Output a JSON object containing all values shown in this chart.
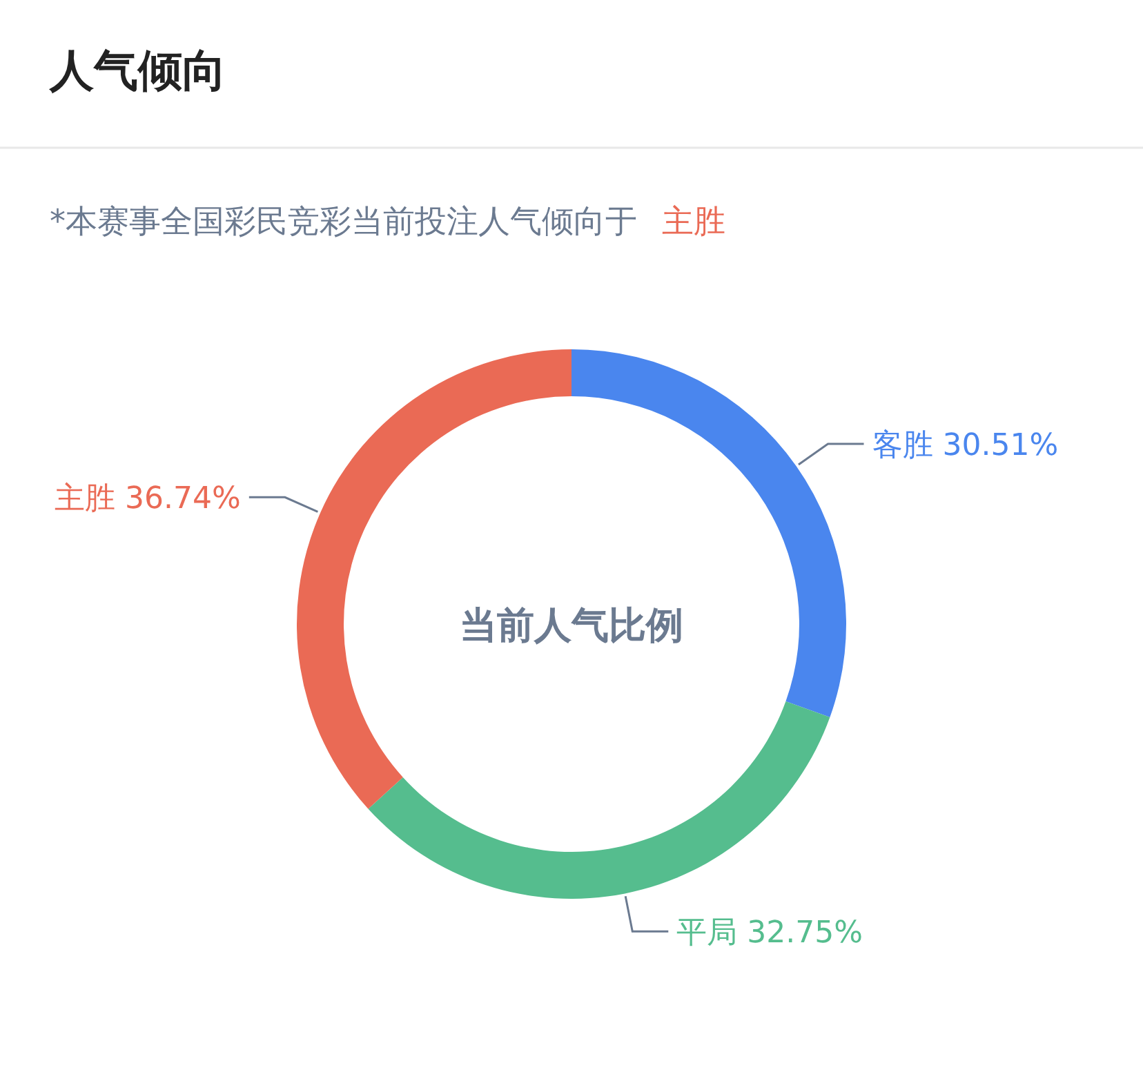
{
  "chart_data": {
    "type": "donut",
    "title": "人气倾向",
    "subtitle": "*本赛事全国彩民竞彩当前投注人气倾向于",
    "annotations": [
      "主胜",
      "当前人气比例"
    ],
    "categories": [
      "客胜",
      "平局",
      "主胜"
    ],
    "values": [
      30.51,
      32.75,
      36.74
    ],
    "colors": [
      "#4a86ee",
      "#55bd8e",
      "#ea6a55"
    ],
    "value_labels": [
      "30.51%",
      "32.75%",
      "36.74%"
    ]
  }
}
